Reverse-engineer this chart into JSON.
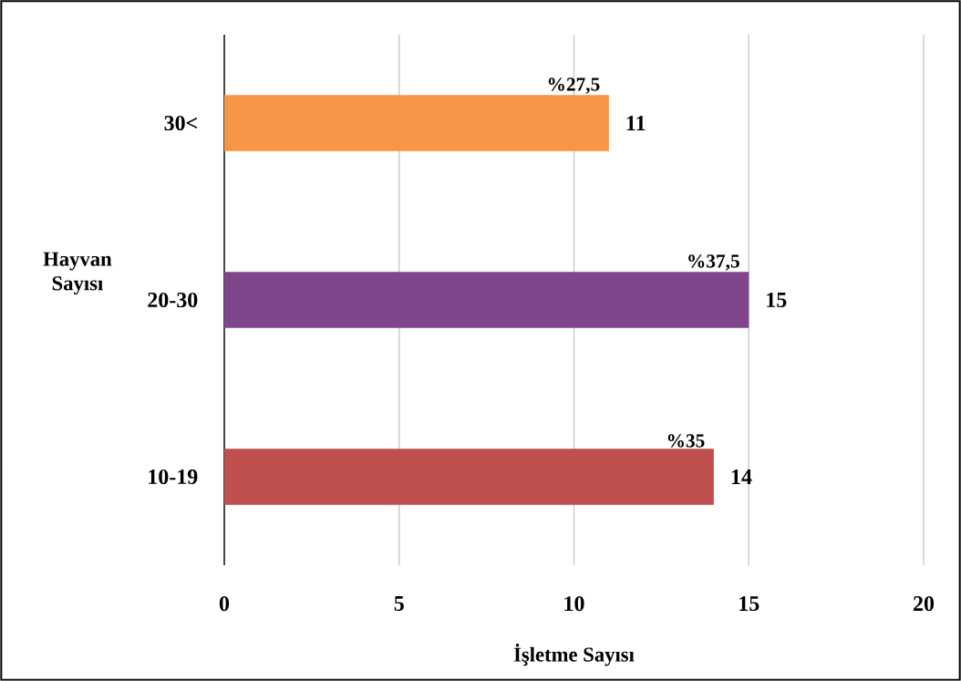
{
  "chart_data": {
    "type": "bar",
    "orientation": "horizontal",
    "xlabel": "İşletme Sayısı",
    "ylabel": "Hayvan Sayısı",
    "categories": [
      "30<",
      "20-30",
      "10-19"
    ],
    "values": [
      11,
      15,
      14
    ],
    "colors": [
      "#f79646",
      "#7f468b",
      "#c0504d"
    ],
    "value_labels": [
      "11",
      "15",
      "14"
    ],
    "annotations": [
      {
        "text": "%27,5",
        "x": 11,
        "y": "30<"
      },
      {
        "text": "%37,5",
        "x": 15,
        "y": "20-30"
      },
      {
        "text": "%35",
        "x": 14,
        "y": "10-19"
      }
    ],
    "xlim": [
      0,
      20
    ],
    "xticks": [
      0,
      5,
      10,
      15,
      20
    ],
    "grid": "x"
  }
}
